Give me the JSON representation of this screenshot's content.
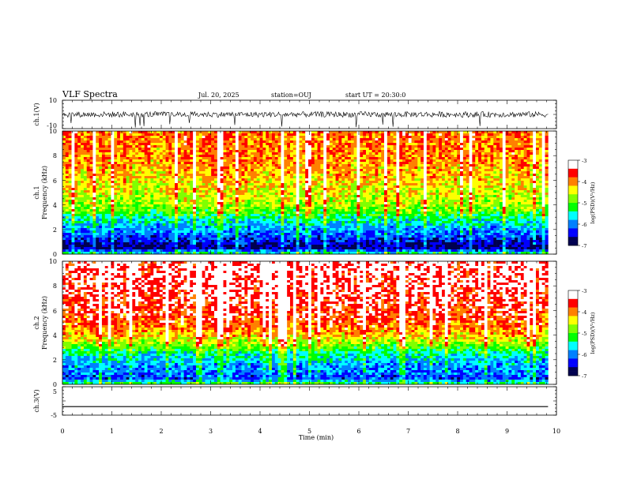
{
  "header": {
    "title": "VLF Spectra",
    "date": "Jul. 20, 2025",
    "station": "station=OUJ",
    "start": "start UT = 20:30:0"
  },
  "chart_data": [
    {
      "type": "line",
      "name": "ch1-waveform",
      "ylabel": "ch.1(V)",
      "ylim": [
        -10,
        10
      ],
      "y_ticks": [
        "10",
        "-10"
      ],
      "xlim": [
        0,
        10
      ],
      "baseline": 0,
      "envelope": [
        -2,
        2
      ],
      "color": "#000000"
    },
    {
      "type": "heatmap",
      "name": "ch1-spectrogram",
      "ylabel": [
        "ch.1",
        "Frequency (kHz)"
      ],
      "ylim": [
        0,
        10
      ],
      "y_ticks": [
        "0",
        "2",
        "4",
        "6",
        "8",
        "10"
      ],
      "xlim": [
        0,
        9.83
      ],
      "profile": {
        "freq_kHz": [
          0,
          0.5,
          1,
          1.5,
          2,
          3,
          3.5,
          4,
          5,
          6,
          8,
          10
        ],
        "log_psd": [
          -5.2,
          -6.8,
          -6.5,
          -6.2,
          -5.9,
          -5.4,
          -5.0,
          -4.7,
          -4.5,
          -4.3,
          -4.0,
          -3.9
        ]
      }
    },
    {
      "type": "heatmap",
      "name": "ch2-spectrogram",
      "ylabel": [
        "ch.2",
        "Frequency (kHz)"
      ],
      "ylim": [
        0,
        10
      ],
      "y_ticks": [
        "0",
        "2",
        "4",
        "6",
        "8",
        "10"
      ],
      "xlim": [
        0,
        9.83
      ],
      "profile": {
        "freq_kHz": [
          0,
          0.5,
          1,
          1.5,
          2,
          2.5,
          3,
          3.5,
          4,
          5,
          6,
          8,
          10
        ],
        "log_psd": [
          -5.0,
          -6.3,
          -6.0,
          -5.9,
          -5.7,
          -5.5,
          -5.0,
          -4.6,
          -4.2,
          -3.8,
          -3.6,
          -3.4,
          -3.3
        ]
      }
    },
    {
      "type": "line",
      "name": "ch3-waveform",
      "ylabel": "ch.3(V)",
      "ylim": [
        -5,
        5
      ],
      "y_ticks": [
        "5",
        "-5"
      ],
      "xlim": [
        0,
        10
      ],
      "xlabel": "Time (min)",
      "x_ticks": [
        "0",
        "1",
        "2",
        "3",
        "4",
        "5",
        "6",
        "7",
        "8",
        "9",
        "10"
      ],
      "constant": -2,
      "color": "#000000"
    }
  ],
  "colorbar": {
    "label": "log(PSD)(V²/Hz)",
    "range": [
      -7,
      -3
    ],
    "ticks": [
      "-3",
      "-4",
      "-5",
      "-6",
      "-7"
    ],
    "colors": [
      "#000050",
      "#0000ff",
      "#0080ff",
      "#00ffff",
      "#00ff00",
      "#80ff00",
      "#ffff00",
      "#ff8000",
      "#ff0000",
      "#ffffff"
    ]
  }
}
